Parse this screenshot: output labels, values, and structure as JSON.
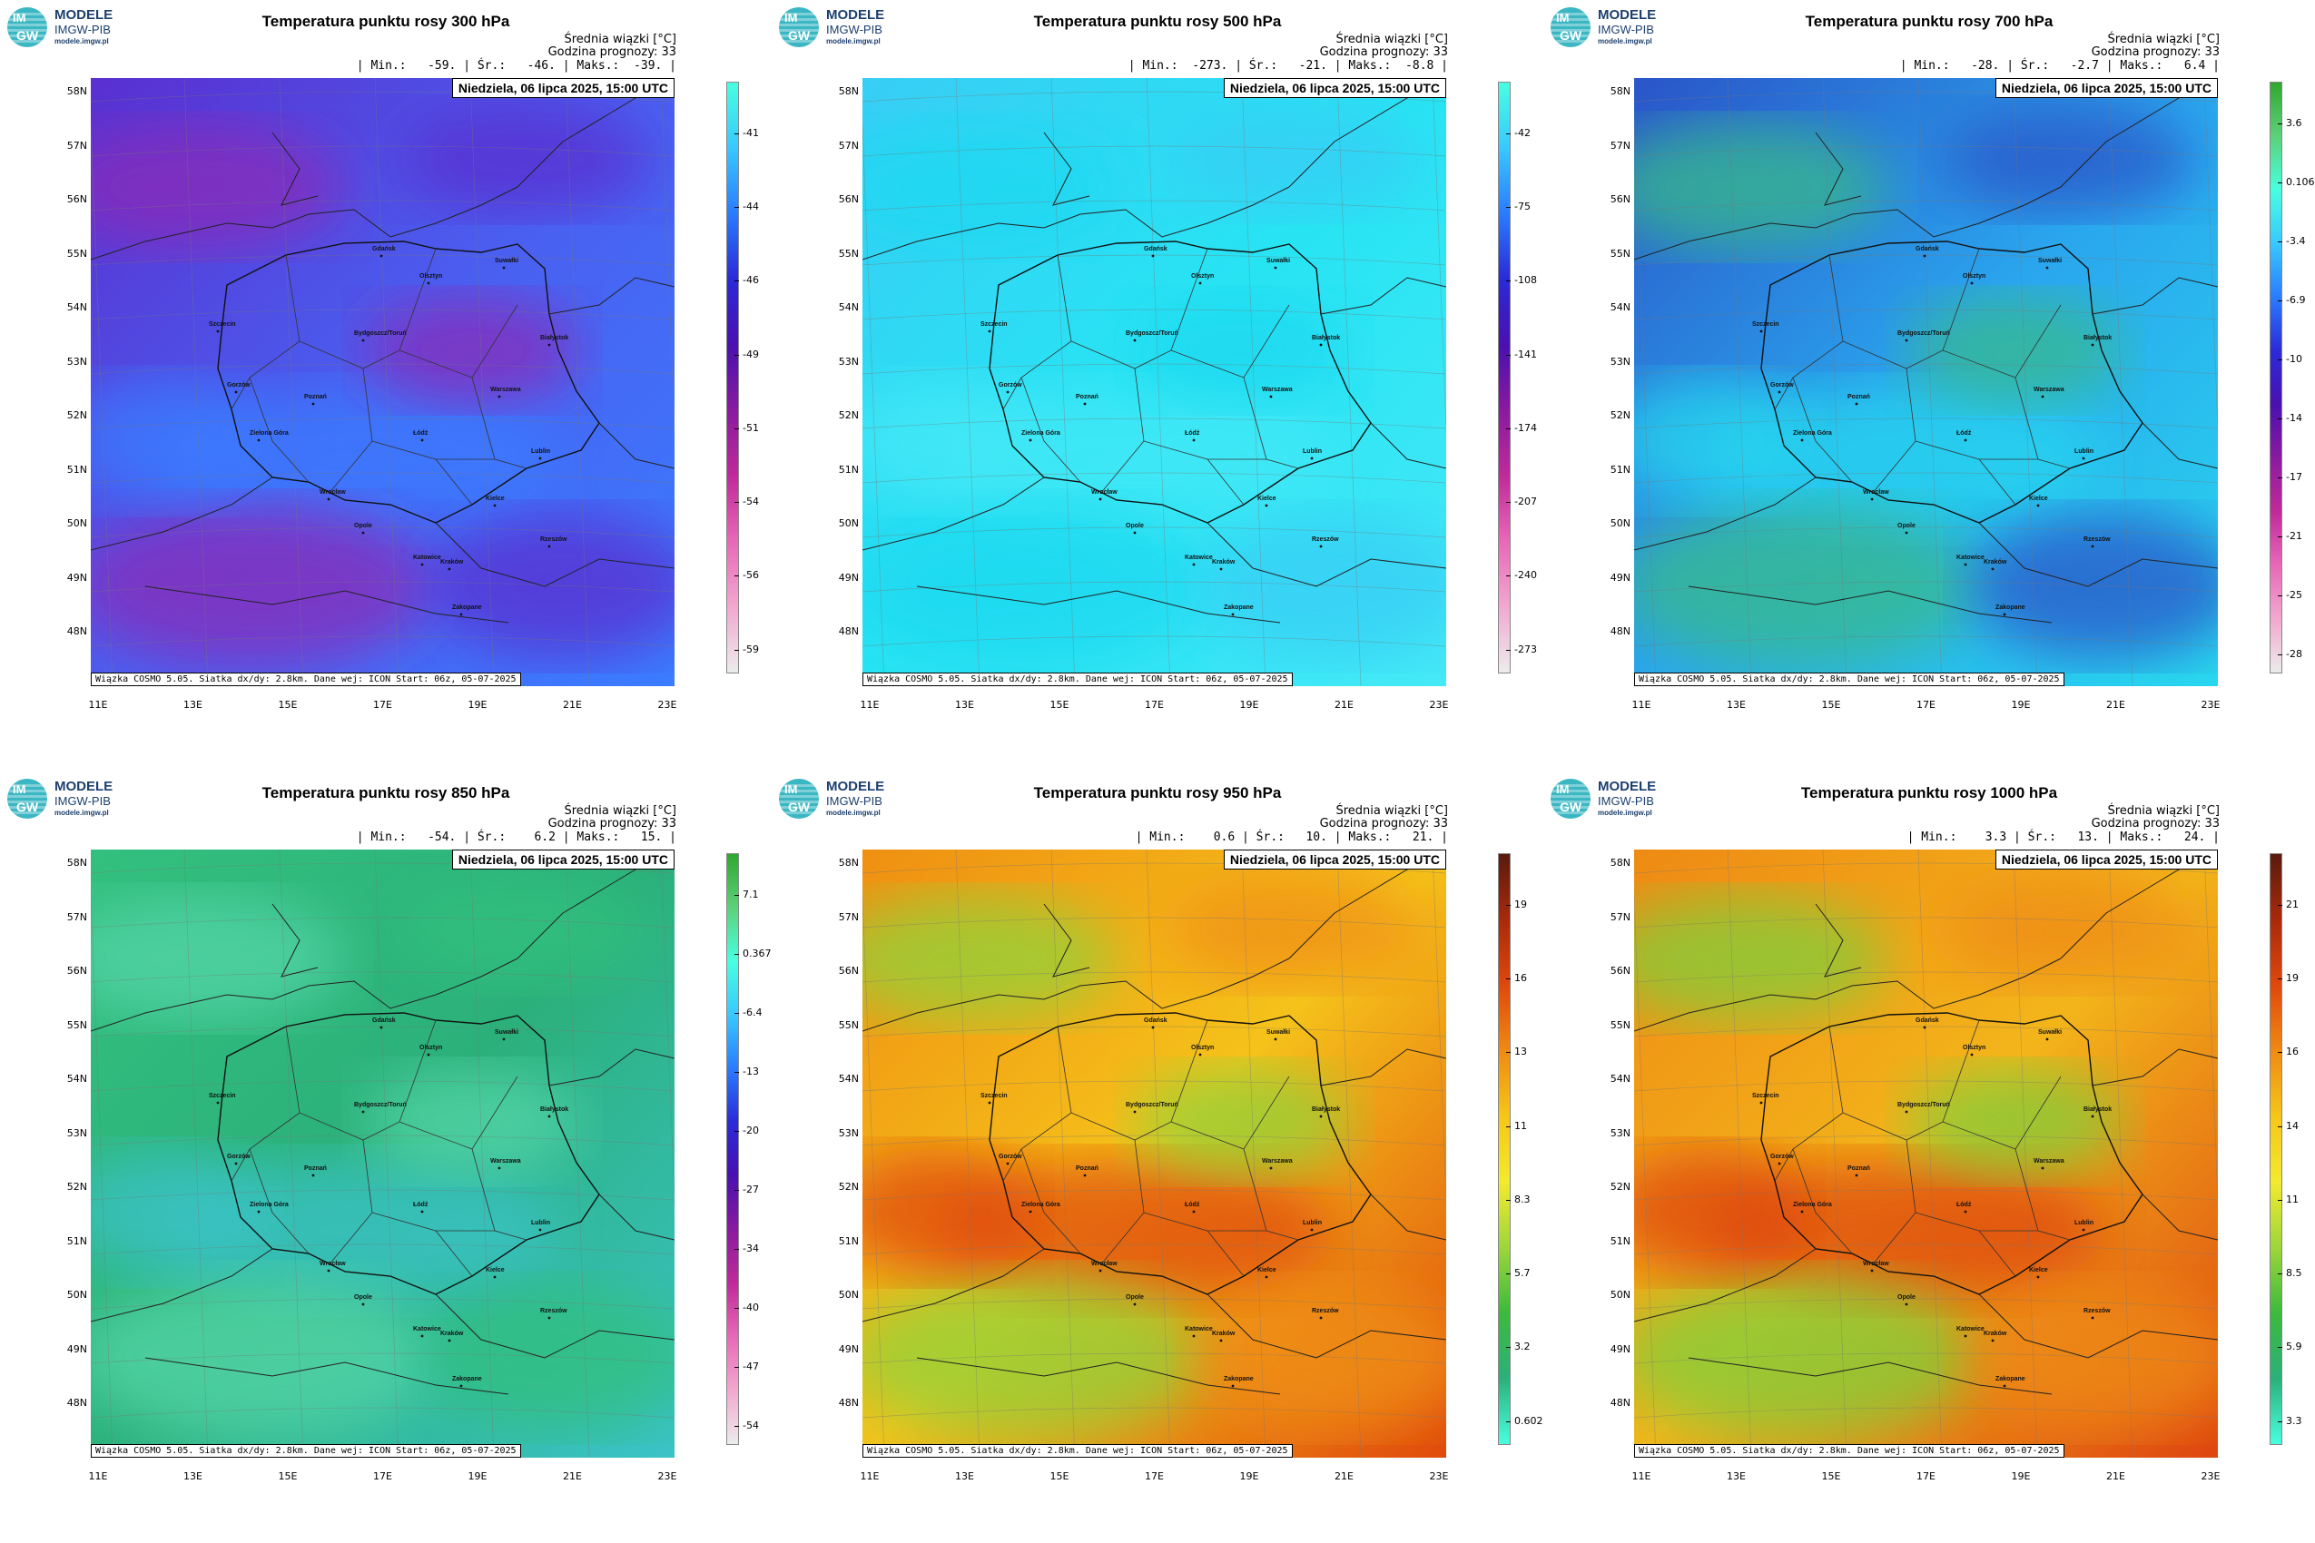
{
  "logo": {
    "circle_top": "IM",
    "circle_bottom": "GW",
    "line1": "MODELE",
    "line2": "IMGW-PIB",
    "line3": "modele.imgw.pl"
  },
  "common": {
    "avg_label": "Średnia wiązki [°C]",
    "forecast_hour": "Godzina prognozy: 33",
    "date": "Niedziela, 06 lipca 2025, 15:00 UTC",
    "footer": "Wiązka COSMO 5.05. Siatka dx/dy: 2.8km. Dane wej: ICON Start: 06z, 05-07-2025",
    "y_ticks": [
      "58N",
      "57N",
      "56N",
      "55N",
      "54N",
      "53N",
      "52N",
      "51N",
      "50N",
      "49N",
      "48N"
    ],
    "x_ticks": [
      "11E",
      "13E",
      "15E",
      "17E",
      "19E",
      "21E",
      "23E"
    ]
  },
  "cities": [
    "Gdańsk",
    "Olsztyn",
    "Suwałki",
    "Szczecin",
    "Bydgoszcz/Toruń",
    "Białystok",
    "Gorzów",
    "Poznań",
    "Warszawa",
    "Zielona Góra",
    "Łódź",
    "Lublin",
    "Wrocław",
    "Kielce",
    "Opole",
    "Rzeszów",
    "Katowice",
    "Kraków",
    "Zakopane"
  ],
  "panels": [
    {
      "title": "Temperatura punktu rosy 300 hPa",
      "stats": "| Min.:   -59. | Śr.:   -46. | Maks.:  -39. |",
      "palette": "p300",
      "colorbar": [
        "-41",
        "-44",
        "-46",
        "-49",
        "-51",
        "-54",
        "-56",
        "-59"
      ],
      "colors": {
        "base": "#4a5ff0",
        "a": "#5a2fd0",
        "b": "#8a2ab8",
        "c": "#3a7cff"
      }
    },
    {
      "title": "Temperatura punktu rosy 500 hPa",
      "stats": "| Min.:  -273. | Śr.:   -21. | Maks.:  -8.8 |",
      "palette": "p500",
      "colorbar": [
        "-42",
        "-75",
        "-108",
        "-141",
        "-174",
        "-207",
        "-240",
        "-273"
      ],
      "colors": {
        "base": "#27e4f3",
        "a": "#38cdf5",
        "b": "#1fd8f0",
        "c": "#45e8f6"
      }
    },
    {
      "title": "Temperatura punktu rosy 700 hPa",
      "stats": "| Min.:   -28. | Śr.:   -2.7 | Maks.:   6.4 |",
      "palette": "p700",
      "colorbar": [
        "3.6",
        "0.106",
        "-3.4",
        "-6.9",
        "-10",
        "-14",
        "-17",
        "-21",
        "-25",
        "-28"
      ],
      "colors": {
        "base": "#2aa6ee",
        "a": "#2a55c8",
        "b": "#37b98a",
        "c": "#28d6ee"
      }
    },
    {
      "title": "Temperatura punktu rosy 850 hPa",
      "stats": "| Min.:   -54. | Śr.:    6.2 | Maks.:   15. |",
      "palette": "p850",
      "colorbar": [
        "7.1",
        "0.367",
        "-6.4",
        "-13",
        "-20",
        "-27",
        "-34",
        "-40",
        "-47",
        "-54"
      ],
      "colors": {
        "base": "#2bb07a",
        "a": "#33c07e",
        "b": "#55d6a8",
        "c": "#3ac3c8"
      }
    },
    {
      "title": "Temperatura punktu rosy 950 hPa",
      "stats": "| Min.:    0.6 | Śr.:   10. | Maks.:   21. |",
      "palette": "p950",
      "colorbar": [
        "19",
        "16",
        "13",
        "11",
        "8.3",
        "5.7",
        "3.2",
        "0.602"
      ],
      "colors": {
        "base": "#f5c21a",
        "a": "#ef8f12",
        "b": "#8fd33a",
        "c": "#e04a0c"
      }
    },
    {
      "title": "Temperatura punktu rosy 1000 hPa",
      "stats": "| Min.:    3.3 | Śr.:   13. | Maks.:   24. |",
      "palette": "p1000",
      "colorbar": [
        "21",
        "19",
        "16",
        "14",
        "11",
        "8.5",
        "5.9",
        "3.3"
      ],
      "colors": {
        "base": "#f3b51a",
        "a": "#ee8a14",
        "b": "#7fcf3a",
        "c": "#de4510"
      }
    }
  ]
}
